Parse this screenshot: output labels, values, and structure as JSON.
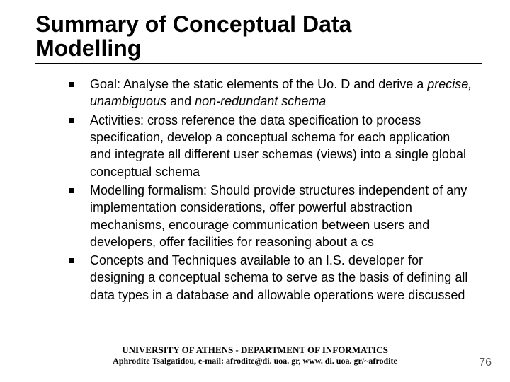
{
  "title_line1": "Summary of Conceptual Data",
  "title_line2": "Modelling",
  "bullets": [
    {
      "pre": "Goal: Analyse the static elements of the Uo. D and derive a ",
      "em": "precise, unambiguous",
      "mid": " and ",
      "em2": "non-redundant schema",
      "post": ""
    },
    {
      "pre": "Activities: cross reference the data specification to process specification, develop a conceptual schema for each application and integrate all different user schemas (views) into a single global conceptual schema",
      "em": "",
      "mid": "",
      "em2": "",
      "post": ""
    },
    {
      "pre": "Modelling formalism: Should provide structures independent of any implementation considerations, offer powerful abstraction mechanisms, encourage communication between users and developers, offer facilities for reasoning about a cs",
      "em": "",
      "mid": "",
      "em2": "",
      "post": ""
    },
    {
      "pre": "Concepts and Techniques available to an I.S. developer for designing a conceptual schema to serve as the basis of defining all data types in a database and allowable operations were discussed",
      "em": "",
      "mid": "",
      "em2": "",
      "post": ""
    }
  ],
  "footer": {
    "line1": "UNIVERSITY OF ATHENS - DEPARTMENT OF INFORMATICS",
    "line2": "Aphrodite Tsalgatidou, e-mail: afrodite@di. uoa. gr, www. di. uoa. gr/~afrodite"
  },
  "page_number": "76",
  "colors": {
    "text": "#000000",
    "background": "#ffffff",
    "rule": "#000000",
    "page_num": "#555555"
  },
  "typography": {
    "title_fontsize": 32,
    "body_fontsize": 18,
    "footer_fontsize": 13,
    "title_weight": "bold"
  }
}
